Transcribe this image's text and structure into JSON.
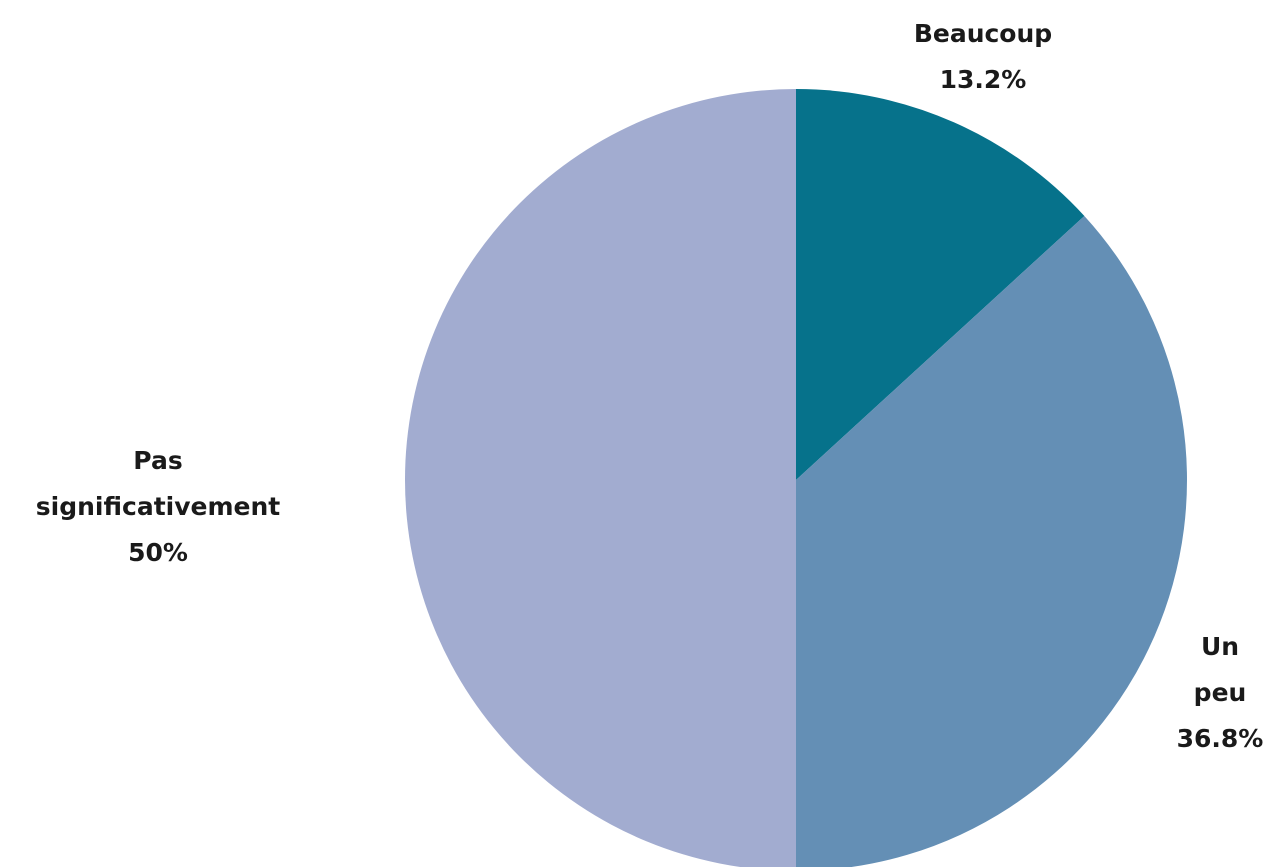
{
  "chart_data": {
    "type": "pie",
    "categories": [
      "Beaucoup",
      "Un peu",
      "Pas significativement"
    ],
    "values": [
      13.2,
      36.8,
      50
    ],
    "value_labels": [
      "13.2%",
      "36.8%",
      "50%"
    ],
    "colors": [
      "#06728b",
      "#648fb5",
      "#a2acd0"
    ]
  }
}
